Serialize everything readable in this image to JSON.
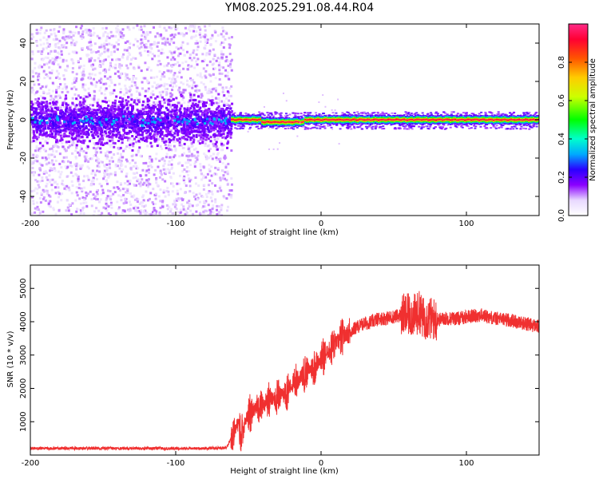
{
  "page_title": "YM08.2025.291.08.44.R04",
  "colors": {
    "snr_line": "#f03030",
    "background": "#ffffff",
    "axis": "#000000"
  },
  "chart_data": [
    {
      "type": "heatmap",
      "name": "spectrogram",
      "xlabel": "Height of straight line (km)",
      "ylabel": "Frequency (Hz)",
      "xlim": [
        -200,
        150
      ],
      "ylim": [
        -50,
        50
      ],
      "x_ticks": [
        -200,
        -100,
        0,
        100
      ],
      "y_ticks": [
        -40,
        -20,
        0,
        20,
        40
      ],
      "grid": false,
      "colorbar": {
        "label": "Normalized spectral amplitude",
        "range": [
          0,
          1
        ],
        "ticks": [
          "0.0",
          "0.2",
          "0.4",
          "0.6",
          "0.8"
        ],
        "colormap": "white-purple-blue-cyan-green-yellow-red-pink"
      },
      "regions": [
        {
          "x_range": [
            -200,
            -62
          ],
          "description_values": {
            "band_center_hz": 0,
            "band_halfwidth_hz": 15,
            "scatter_halfwidth_hz": 50,
            "peak_amplitude": 0.3
          }
        },
        {
          "x_range": [
            -62,
            150
          ],
          "description_values": {
            "band_center_hz": 0,
            "band_halfwidth_hz": 2,
            "peak_amplitude": 0.95
          }
        }
      ]
    },
    {
      "type": "line",
      "name": "snr",
      "xlabel": "Height of straight line (km)",
      "ylabel": "SNR (10 * v/v)",
      "xlim": [
        -200,
        150
      ],
      "ylim": [
        0,
        5700
      ],
      "x_ticks": [
        -200,
        -100,
        0,
        100
      ],
      "y_ticks": [
        1000,
        2000,
        3000,
        4000,
        5000
      ],
      "grid": false,
      "series": [
        {
          "color": "#f03030",
          "x": [
            -200,
            -180,
            -160,
            -140,
            -120,
            -100,
            -80,
            -65,
            -58,
            -55,
            -50,
            -45,
            -40,
            -35,
            -30,
            -25,
            -20,
            -15,
            -10,
            -5,
            0,
            5,
            10,
            15,
            20,
            25,
            30,
            35,
            40,
            45,
            50,
            55,
            60,
            65,
            68,
            70,
            75,
            80,
            85,
            90,
            95,
            100,
            110,
            120,
            130,
            140,
            150
          ],
          "y": [
            200,
            200,
            200,
            200,
            200,
            200,
            200,
            220,
            900,
            700,
            1200,
            1400,
            1500,
            1650,
            1750,
            1850,
            2100,
            2300,
            2500,
            2650,
            2900,
            3100,
            3350,
            3550,
            3700,
            3850,
            3950,
            4000,
            4100,
            4100,
            4150,
            4200,
            4200,
            4200,
            4300,
            4100,
            4100,
            4050,
            4100,
            4100,
            4100,
            4150,
            4200,
            4100,
            4050,
            3950,
            3850
          ]
        }
      ]
    }
  ]
}
